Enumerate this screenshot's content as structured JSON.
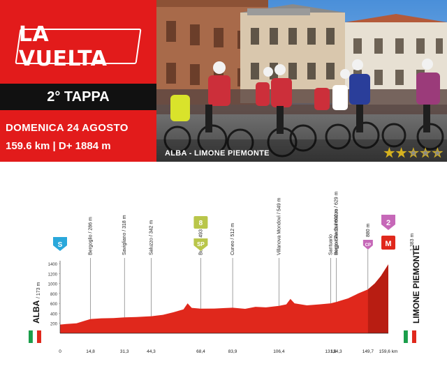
{
  "brand": {
    "logo": "LA VUELTA"
  },
  "stage": {
    "title": "2° TAPPA",
    "date": "DOMENICA 24 AGOSTO",
    "distance_info": "159.6 km | D+ 1884 m"
  },
  "photo": {
    "caption": "ALBA - LIMONE PIEMONTE",
    "stars_filled": 2,
    "stars_total": 5
  },
  "colors": {
    "red": "#e21b1b",
    "profile_fill": "#e0281c",
    "profile_dark": "#b81d12",
    "sprint_green": "#b9c64a",
    "mountain_pink": "#c668b8",
    "start_blue": "#2aa8db",
    "star_gold": "#d6b21f"
  },
  "chart_data": {
    "type": "area",
    "x_unit": "km",
    "x_label_suffix": "km",
    "ylim": [
      0,
      1400
    ],
    "y_ticks": [
      "0",
      "200",
      "400",
      "600",
      "800",
      "1000",
      "1200",
      "1400"
    ],
    "x_ticks": [
      "0",
      "14,8",
      "31,3",
      "44,3",
      "68,4",
      "83,9",
      "106,4",
      "131,6",
      "134,3",
      "149,7",
      "159,6"
    ],
    "start": {
      "name": "ALBA",
      "alt": "173 m",
      "badge": "S"
    },
    "finish": {
      "name": "LIMONE PIEMONTE",
      "alt": "1.383 m",
      "badge": "M"
    },
    "points": [
      {
        "km": 0,
        "alt": 173
      },
      {
        "km": 3,
        "alt": 185
      },
      {
        "km": 8,
        "alt": 200
      },
      {
        "km": 12,
        "alt": 250
      },
      {
        "km": 14.8,
        "alt": 286
      },
      {
        "km": 20,
        "alt": 300
      },
      {
        "km": 26,
        "alt": 305
      },
      {
        "km": 31.3,
        "alt": 318
      },
      {
        "km": 37,
        "alt": 325
      },
      {
        "km": 44.3,
        "alt": 342
      },
      {
        "km": 50,
        "alt": 370
      },
      {
        "km": 55,
        "alt": 420
      },
      {
        "km": 60,
        "alt": 480
      },
      {
        "km": 62,
        "alt": 600
      },
      {
        "km": 64,
        "alt": 510
      },
      {
        "km": 68.4,
        "alt": 493
      },
      {
        "km": 75,
        "alt": 495
      },
      {
        "km": 80,
        "alt": 505
      },
      {
        "km": 83.9,
        "alt": 512
      },
      {
        "km": 90,
        "alt": 490
      },
      {
        "km": 95,
        "alt": 530
      },
      {
        "km": 100,
        "alt": 520
      },
      {
        "km": 106.4,
        "alt": 549
      },
      {
        "km": 110,
        "alt": 580
      },
      {
        "km": 112,
        "alt": 690
      },
      {
        "km": 114,
        "alt": 600
      },
      {
        "km": 120,
        "alt": 560
      },
      {
        "km": 126,
        "alt": 580
      },
      {
        "km": 131.6,
        "alt": 600
      },
      {
        "km": 134.3,
        "alt": 629
      },
      {
        "km": 140,
        "alt": 700
      },
      {
        "km": 145,
        "alt": 800
      },
      {
        "km": 149.7,
        "alt": 880
      },
      {
        "km": 153,
        "alt": 1000
      },
      {
        "km": 156,
        "alt": 1150
      },
      {
        "km": 159.6,
        "alt": 1383
      }
    ],
    "waypoints": [
      {
        "km": 14.8,
        "label": "Bergoglio",
        "alt": "286 m"
      },
      {
        "km": 31.3,
        "label": "Savigliano",
        "alt": "318 m"
      },
      {
        "km": 44.3,
        "label": "Saluzzo",
        "alt": "342 m"
      },
      {
        "km": 68.4,
        "label": "Busca",
        "alt": "493 m",
        "badge": "8",
        "badge2": "SP"
      },
      {
        "km": 83.9,
        "label": "Cuneo",
        "alt": "512 m"
      },
      {
        "km": 106.4,
        "label": "Villanova Mondovì",
        "alt": "549 m"
      },
      {
        "km": 131.6,
        "label": "Santuario",
        "label2": "Regina Pacis",
        "alt": "600 m"
      },
      {
        "km": 134.3,
        "label": "Borgo San Dalmazzo",
        "alt": "629 m"
      },
      {
        "km": 149.7,
        "label": "",
        "alt": "880 m",
        "badge": "CP"
      },
      {
        "km": 159.6,
        "label": "",
        "alt": "",
        "badge": "2"
      }
    ]
  }
}
